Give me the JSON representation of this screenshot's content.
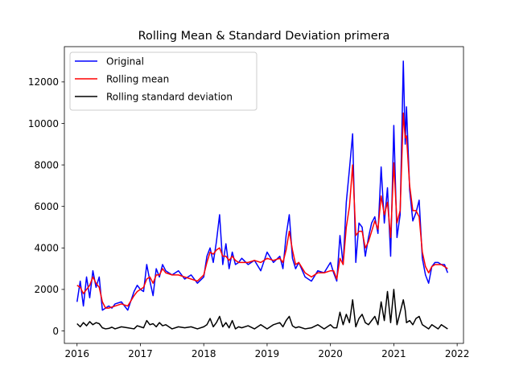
{
  "chart_data": {
    "type": "line",
    "title": "Rolling Mean & Standard Deviation primera",
    "xlabel": "",
    "ylabel": "",
    "xlim": [
      2015.8,
      2022.1
    ],
    "ylim": [
      -600,
      13700
    ],
    "x_ticks": [
      2016,
      2017,
      2018,
      2019,
      2020,
      2021,
      2022
    ],
    "x_tick_labels": [
      "2016",
      "2017",
      "2018",
      "2019",
      "2020",
      "2021",
      "2022"
    ],
    "y_ticks": [
      0,
      2000,
      4000,
      6000,
      8000,
      10000,
      12000
    ],
    "y_tick_labels": [
      "0",
      "2000",
      "4000",
      "6000",
      "8000",
      "10000",
      "12000"
    ],
    "grid": false,
    "legend_placement": "top-left",
    "series": [
      {
        "name": "Original",
        "color": "#0000ff",
        "x": [
          2016.0,
          2016.05,
          2016.1,
          2016.15,
          2016.2,
          2016.25,
          2016.3,
          2016.35,
          2016.4,
          2016.45,
          2016.5,
          2016.55,
          2016.6,
          2016.7,
          2016.8,
          2016.9,
          2016.95,
          2017.0,
          2017.05,
          2017.1,
          2017.15,
          2017.2,
          2017.25,
          2017.3,
          2017.35,
          2017.4,
          2017.5,
          2017.6,
          2017.7,
          2017.8,
          2017.9,
          2018.0,
          2018.05,
          2018.1,
          2018.15,
          2018.2,
          2018.25,
          2018.3,
          2018.35,
          2018.4,
          2018.45,
          2018.5,
          2018.55,
          2018.6,
          2018.7,
          2018.8,
          2018.9,
          2019.0,
          2019.1,
          2019.2,
          2019.25,
          2019.3,
          2019.35,
          2019.4,
          2019.45,
          2019.5,
          2019.6,
          2019.7,
          2019.8,
          2019.9,
          2020.0,
          2020.05,
          2020.1,
          2020.15,
          2020.2,
          2020.25,
          2020.3,
          2020.35,
          2020.4,
          2020.45,
          2020.5,
          2020.55,
          2020.6,
          2020.65,
          2020.7,
          2020.75,
          2020.8,
          2020.85,
          2020.9,
          2020.95,
          2021.0,
          2021.05,
          2021.1,
          2021.15,
          2021.18,
          2021.2,
          2021.25,
          2021.3,
          2021.35,
          2021.4,
          2021.45,
          2021.5,
          2021.55,
          2021.6,
          2021.65,
          2021.7,
          2021.75,
          2021.8,
          2021.85
        ],
        "y": [
          1400,
          2400,
          1200,
          2600,
          1600,
          2900,
          2100,
          2600,
          1000,
          1100,
          1200,
          1100,
          1300,
          1400,
          1000,
          1900,
          2200,
          2000,
          1900,
          3200,
          2400,
          1700,
          3000,
          2600,
          3200,
          2900,
          2700,
          2900,
          2500,
          2700,
          2300,
          2600,
          3600,
          4000,
          3300,
          4300,
          5600,
          3200,
          4200,
          3000,
          3800,
          3200,
          3300,
          3500,
          3200,
          3400,
          2900,
          3800,
          3300,
          3600,
          3000,
          4600,
          5600,
          3500,
          3000,
          3300,
          2600,
          2400,
          2900,
          2800,
          3300,
          2800,
          2400,
          4600,
          3200,
          6200,
          7800,
          9500,
          3300,
          5200,
          5000,
          3600,
          4500,
          5200,
          5500,
          4700,
          7900,
          5200,
          6900,
          3600,
          9900,
          4500,
          5600,
          13000,
          9000,
          10800,
          6800,
          5300,
          5700,
          6300,
          3500,
          2700,
          2300,
          3100,
          3300,
          3300,
          3200,
          3200,
          2800
        ]
      },
      {
        "name": "Rolling mean",
        "color": "#ff0000",
        "x": [
          2016.0,
          2016.05,
          2016.1,
          2016.15,
          2016.2,
          2016.25,
          2016.3,
          2016.35,
          2016.4,
          2016.45,
          2016.5,
          2016.55,
          2016.6,
          2016.7,
          2016.8,
          2016.9,
          2016.95,
          2017.0,
          2017.05,
          2017.1,
          2017.15,
          2017.2,
          2017.25,
          2017.3,
          2017.35,
          2017.4,
          2017.5,
          2017.6,
          2017.7,
          2017.8,
          2017.9,
          2018.0,
          2018.05,
          2018.1,
          2018.15,
          2018.2,
          2018.25,
          2018.3,
          2018.35,
          2018.4,
          2018.45,
          2018.5,
          2018.55,
          2018.6,
          2018.7,
          2018.8,
          2018.9,
          2019.0,
          2019.1,
          2019.2,
          2019.25,
          2019.3,
          2019.35,
          2019.4,
          2019.45,
          2019.5,
          2019.6,
          2019.7,
          2019.8,
          2019.9,
          2020.0,
          2020.05,
          2020.1,
          2020.15,
          2020.2,
          2020.25,
          2020.3,
          2020.35,
          2020.4,
          2020.45,
          2020.5,
          2020.55,
          2020.6,
          2020.65,
          2020.7,
          2020.75,
          2020.8,
          2020.85,
          2020.9,
          2020.95,
          2021.0,
          2021.05,
          2021.1,
          2021.15,
          2021.18,
          2021.2,
          2021.25,
          2021.3,
          2021.35,
          2021.4,
          2021.45,
          2021.5,
          2021.55,
          2021.6,
          2021.65,
          2021.7,
          2021.75,
          2021.8,
          2021.85
        ],
        "y": [
          2200,
          2100,
          1800,
          2000,
          2200,
          2600,
          2300,
          2100,
          1400,
          1100,
          1100,
          1150,
          1200,
          1300,
          1200,
          1700,
          1900,
          2000,
          2100,
          2500,
          2600,
          2300,
          2700,
          2700,
          3000,
          2800,
          2700,
          2700,
          2600,
          2500,
          2400,
          2700,
          3300,
          3800,
          3700,
          3900,
          4000,
          3600,
          3600,
          3400,
          3600,
          3400,
          3300,
          3300,
          3300,
          3400,
          3300,
          3500,
          3400,
          3500,
          3300,
          3900,
          4800,
          3900,
          3200,
          3300,
          2800,
          2600,
          2800,
          2800,
          2900,
          2900,
          2500,
          3500,
          3200,
          5000,
          6000,
          8000,
          4600,
          4800,
          4800,
          4000,
          4300,
          4800,
          5300,
          4900,
          6500,
          5600,
          6200,
          4500,
          8100,
          5200,
          5800,
          10500,
          9300,
          9400,
          7000,
          5800,
          5800,
          5500,
          3800,
          3100,
          2800,
          3100,
          3200,
          3200,
          3200,
          3100,
          3000
        ]
      },
      {
        "name": "Rolling standard deviation",
        "color": "#000000",
        "x": [
          2016.0,
          2016.05,
          2016.1,
          2016.15,
          2016.2,
          2016.25,
          2016.3,
          2016.35,
          2016.4,
          2016.45,
          2016.5,
          2016.55,
          2016.6,
          2016.7,
          2016.8,
          2016.9,
          2016.95,
          2017.0,
          2017.05,
          2017.1,
          2017.15,
          2017.2,
          2017.25,
          2017.3,
          2017.35,
          2017.4,
          2017.5,
          2017.6,
          2017.7,
          2017.8,
          2017.9,
          2018.0,
          2018.05,
          2018.1,
          2018.15,
          2018.2,
          2018.25,
          2018.3,
          2018.35,
          2018.4,
          2018.45,
          2018.5,
          2018.55,
          2018.6,
          2018.7,
          2018.8,
          2018.9,
          2019.0,
          2019.1,
          2019.2,
          2019.25,
          2019.3,
          2019.35,
          2019.4,
          2019.45,
          2019.5,
          2019.6,
          2019.7,
          2019.8,
          2019.9,
          2020.0,
          2020.05,
          2020.1,
          2020.15,
          2020.2,
          2020.25,
          2020.3,
          2020.35,
          2020.4,
          2020.45,
          2020.5,
          2020.55,
          2020.6,
          2020.65,
          2020.7,
          2020.75,
          2020.8,
          2020.85,
          2020.9,
          2020.95,
          2021.0,
          2021.05,
          2021.1,
          2021.15,
          2021.18,
          2021.2,
          2021.25,
          2021.3,
          2021.35,
          2021.4,
          2021.45,
          2021.5,
          2021.55,
          2021.6,
          2021.65,
          2021.7,
          2021.75,
          2021.8,
          2021.85
        ],
        "y": [
          350,
          200,
          400,
          250,
          450,
          300,
          400,
          350,
          150,
          100,
          120,
          180,
          100,
          200,
          150,
          100,
          250,
          200,
          150,
          500,
          300,
          350,
          200,
          400,
          250,
          300,
          100,
          200,
          150,
          200,
          100,
          200,
          300,
          600,
          200,
          400,
          700,
          200,
          400,
          150,
          500,
          100,
          200,
          150,
          250,
          100,
          300,
          100,
          300,
          400,
          200,
          500,
          700,
          250,
          150,
          200,
          100,
          150,
          300,
          100,
          300,
          150,
          150,
          900,
          300,
          800,
          400,
          1500,
          200,
          600,
          800,
          400,
          300,
          500,
          700,
          300,
          1400,
          500,
          1900,
          400,
          2000,
          300,
          900,
          1500,
          1000,
          400,
          500,
          300,
          600,
          700,
          300,
          200,
          100,
          300,
          200,
          100,
          300,
          200,
          100
        ]
      }
    ]
  }
}
